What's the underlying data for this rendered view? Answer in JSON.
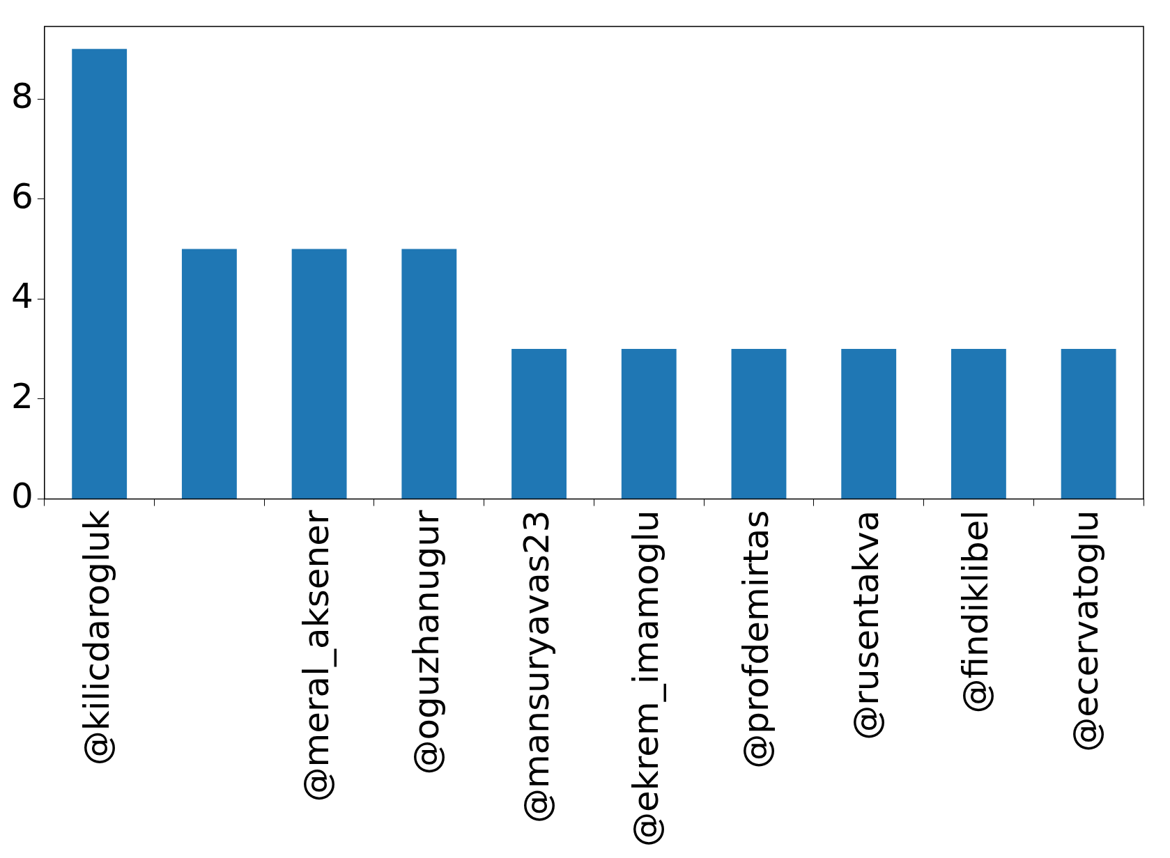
{
  "chart_data": {
    "type": "bar",
    "categories": [
      "@kilicdarogluk",
      null,
      "@meral_aksener",
      "@oguzhanugur",
      "@mansuryavas23",
      "@ekrem_imamoglu",
      "@profdemirtas",
      "@rusentakva",
      "@findiklibel",
      "@ecervatoglu"
    ],
    "values": [
      9,
      5,
      5,
      5,
      3,
      3,
      3,
      3,
      3,
      3
    ],
    "color": "#1f77b4",
    "ylim": [
      0,
      9.45
    ],
    "yticks": [
      0,
      2,
      4,
      6,
      8
    ],
    "grid": false,
    "legend": false
  }
}
